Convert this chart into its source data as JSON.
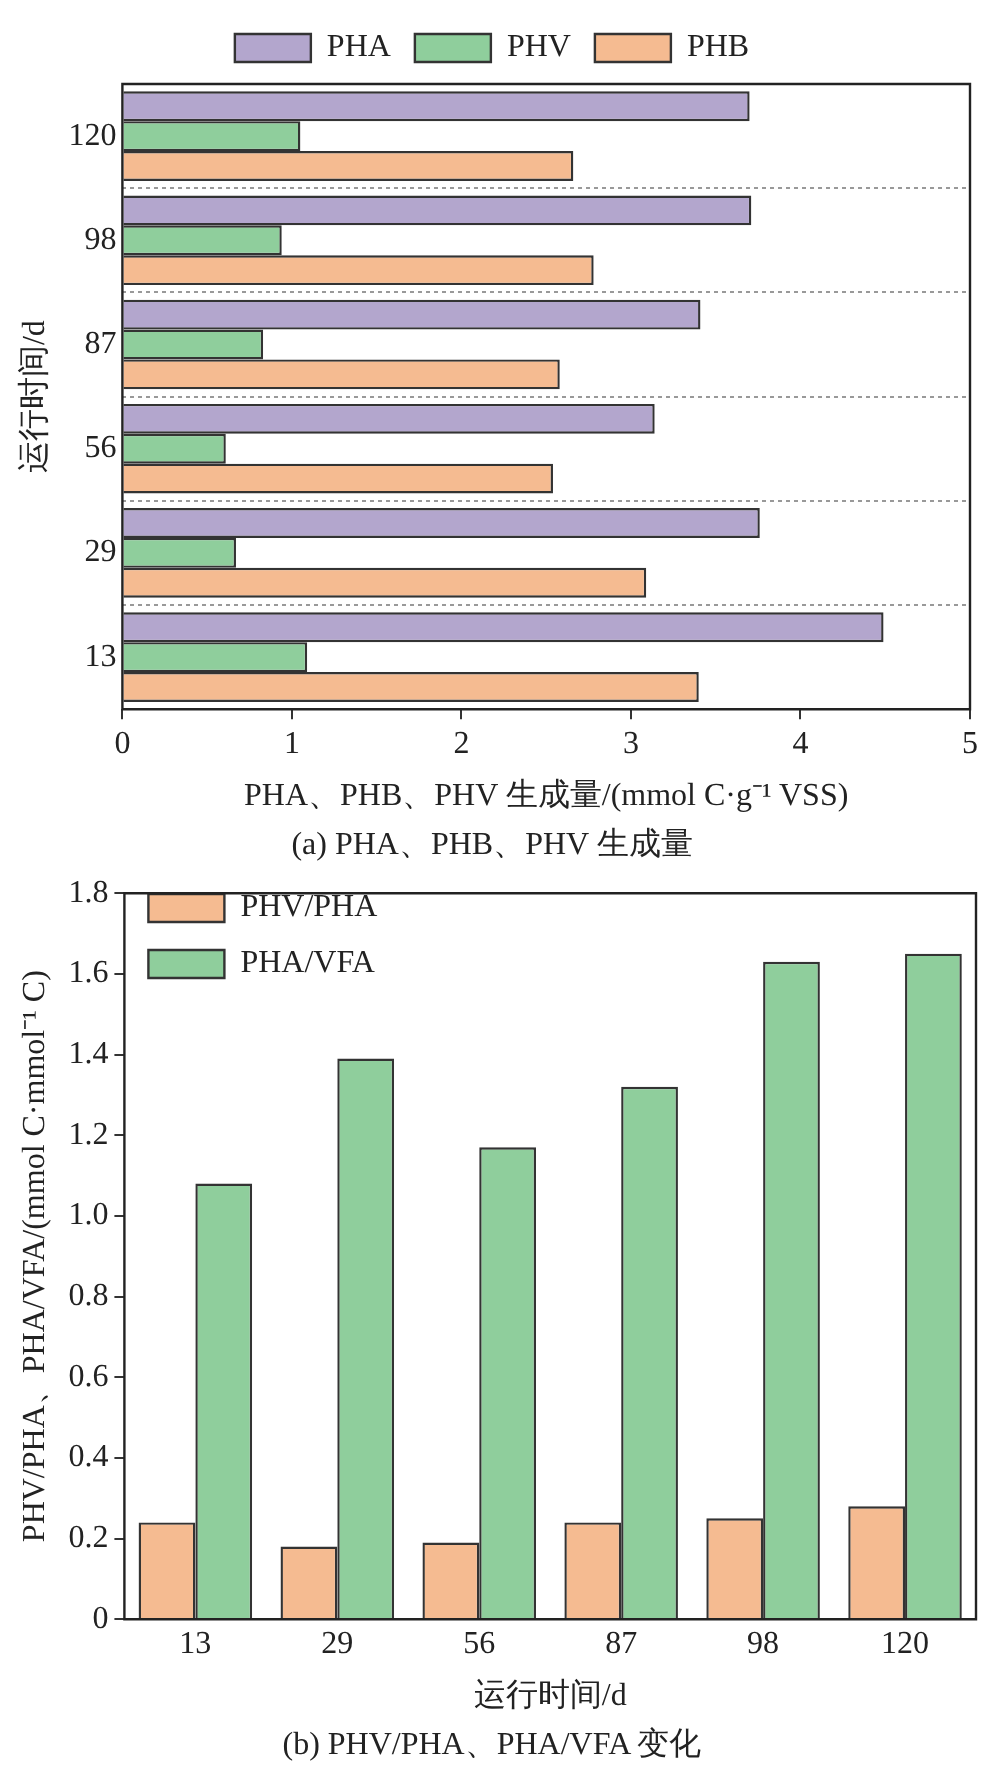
{
  "chart_data": [
    {
      "type": "bar",
      "orientation": "horizontal",
      "categories": [
        "120",
        "98",
        "87",
        "56",
        "29",
        "13"
      ],
      "series": [
        {
          "name": "PHA",
          "color": "#b3a6cd",
          "values": [
            3.7,
            3.71,
            3.41,
            3.14,
            3.76,
            4.49
          ]
        },
        {
          "name": "PHV",
          "color": "#8fce9c",
          "values": [
            1.05,
            0.94,
            0.83,
            0.61,
            0.67,
            1.09
          ]
        },
        {
          "name": "PHB",
          "color": "#f5bb91",
          "values": [
            2.66,
            2.78,
            2.58,
            2.54,
            3.09,
            3.4
          ]
        }
      ],
      "xlim": [
        0,
        5
      ],
      "xticks": [
        0,
        1,
        2,
        3,
        4,
        5
      ],
      "xlabel": "PHA、PHB、PHV 生成量/(mmol C·g⁻¹ VSS)",
      "ylabel": "运行时间/d",
      "legend": "top",
      "grid": "y",
      "annotations": [
        "(a) PHA、PHB、PHV 生成量"
      ]
    },
    {
      "type": "bar",
      "categories": [
        "13",
        "29",
        "56",
        "87",
        "98",
        "120"
      ],
      "series": [
        {
          "name": "PHV/PHA",
          "color": "#f5bb91",
          "values": [
            0.24,
            0.18,
            0.19,
            0.24,
            0.25,
            0.28
          ]
        },
        {
          "name": "PHA/VFA",
          "color": "#8fce9c",
          "values": [
            1.08,
            1.39,
            1.17,
            1.32,
            1.63,
            1.65
          ]
        }
      ],
      "ylim": [
        0,
        1.8
      ],
      "yticks": [
        0,
        0.2,
        0.4,
        0.6,
        0.8,
        {
          "value": 1,
          "label": "1.0"
        },
        1.2,
        1.4,
        1.6,
        1.8
      ],
      "xlabel": "运行时间/d",
      "ylabel": "PHV/PHA、PHA/VFA/(mmol C·mmol⁻¹ C)",
      "legend": "top left",
      "annotations": [
        "(b) PHV/PHA、PHA/VFA 变化"
      ]
    }
  ]
}
